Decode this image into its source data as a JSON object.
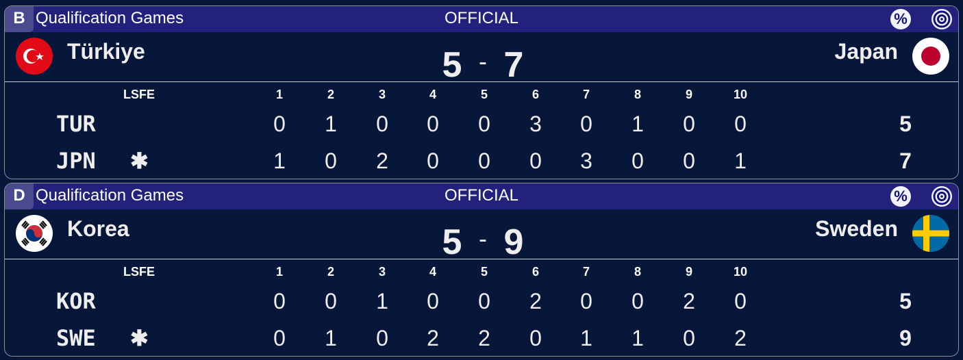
{
  "games": [
    {
      "sheet": "B",
      "event": "Qualification Games",
      "status": "OFFICIAL",
      "percent_icon": "percent-icon",
      "target_icon": "target-icon",
      "home": {
        "name": "Türkiye",
        "flag": "turkey",
        "code": "TUR",
        "hammer": "",
        "score": "5",
        "ends": [
          "0",
          "1",
          "0",
          "0",
          "0",
          "3",
          "0",
          "1",
          "0",
          "0"
        ],
        "total": "5"
      },
      "away": {
        "name": "Japan",
        "flag": "japan",
        "code": "JPN",
        "hammer": "✱",
        "score": "7",
        "ends": [
          "1",
          "0",
          "2",
          "0",
          "0",
          "0",
          "3",
          "0",
          "0",
          "1"
        ],
        "total": "7"
      },
      "separator": "-",
      "lsfe_label": "LSFE",
      "end_headers": [
        "1",
        "2",
        "3",
        "4",
        "5",
        "6",
        "7",
        "8",
        "9",
        "10"
      ]
    },
    {
      "sheet": "D",
      "event": "Qualification Games",
      "status": "OFFICIAL",
      "percent_icon": "percent-icon",
      "target_icon": "target-icon",
      "home": {
        "name": "Korea",
        "flag": "korea",
        "code": "KOR",
        "hammer": "",
        "score": "5",
        "ends": [
          "0",
          "0",
          "1",
          "0",
          "0",
          "2",
          "0",
          "0",
          "2",
          "0"
        ],
        "total": "5"
      },
      "away": {
        "name": "Sweden",
        "flag": "sweden",
        "code": "SWE",
        "hammer": "✱",
        "score": "9",
        "ends": [
          "0",
          "1",
          "0",
          "2",
          "2",
          "0",
          "1",
          "1",
          "0",
          "2"
        ],
        "total": "9"
      },
      "separator": "-",
      "lsfe_label": "LSFE",
      "end_headers": [
        "1",
        "2",
        "3",
        "4",
        "5",
        "6",
        "7",
        "8",
        "9",
        "10"
      ]
    }
  ],
  "colors": {
    "background": "#07173a",
    "header_bar": "#22217c",
    "badge": "#4a4b8f"
  }
}
